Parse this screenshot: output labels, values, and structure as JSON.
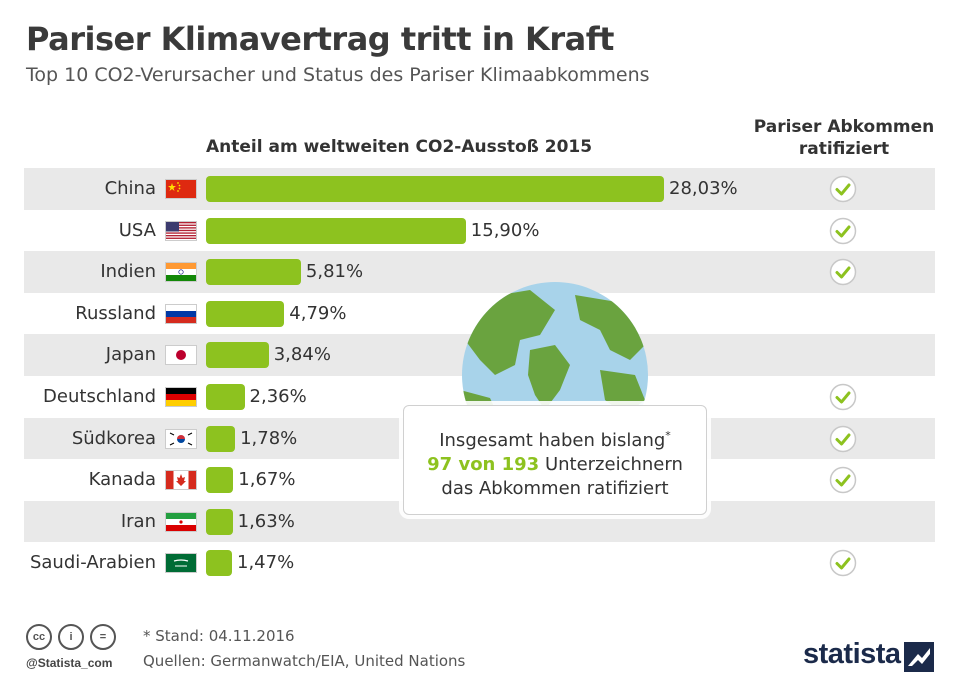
{
  "header": {
    "title": "Pariser Klimavertrag tritt in Kraft",
    "subtitle": "Top 10 CO2-Verursacher und Status des Pariser Klimaabkommens"
  },
  "columns": {
    "share": "Anteil am weltweiten CO2-Ausstoß 2015",
    "ratified_line1": "Pariser Abkommen",
    "ratified_line2": "ratifiziert"
  },
  "chart_data": {
    "type": "bar",
    "orientation": "horizontal",
    "title": "Anteil am weltweiten CO2-Ausstoß 2015",
    "categories": [
      "China",
      "USA",
      "Indien",
      "Russland",
      "Japan",
      "Deutschland",
      "Südkorea",
      "Kanada",
      "Iran",
      "Saudi-Arabien"
    ],
    "values": [
      28.03,
      15.9,
      5.81,
      4.79,
      3.84,
      2.36,
      1.78,
      1.67,
      1.63,
      1.47
    ],
    "value_labels": [
      "28,03%",
      "15,90%",
      "5,81%",
      "4,79%",
      "3,84%",
      "2,36%",
      "1,78%",
      "1,67%",
      "1,63%",
      "1,47%"
    ],
    "ratified": [
      true,
      true,
      true,
      false,
      false,
      true,
      true,
      true,
      false,
      true
    ],
    "bar_color": "#8dc21f",
    "xlim": [
      0,
      28.03
    ]
  },
  "flags": [
    "china-flag",
    "usa-flag",
    "india-flag",
    "russia-flag",
    "japan-flag",
    "germany-flag",
    "south-korea-flag",
    "canada-flag",
    "iran-flag",
    "saudi-arabia-flag"
  ],
  "callout": {
    "line1": "Insgesamt haben bislang",
    "asterisk": "*",
    "highlight": "97 von 193",
    "line2_rest": " Unterzeichnern",
    "line3": "das Abkommen ratifiziert"
  },
  "footer": {
    "handle": "@Statista_com",
    "note": "* Stand: 04.11.2016",
    "sources": "Quellen: Germanwatch/EIA, United Nations",
    "brand": "statista",
    "cc_icons": [
      "cc",
      "i",
      "="
    ]
  },
  "colors": {
    "accent_green": "#8dc21f",
    "check_green": "#8dc21f",
    "row_shade": "#e9e9e9",
    "brand_navy": "#1b2a4a"
  }
}
